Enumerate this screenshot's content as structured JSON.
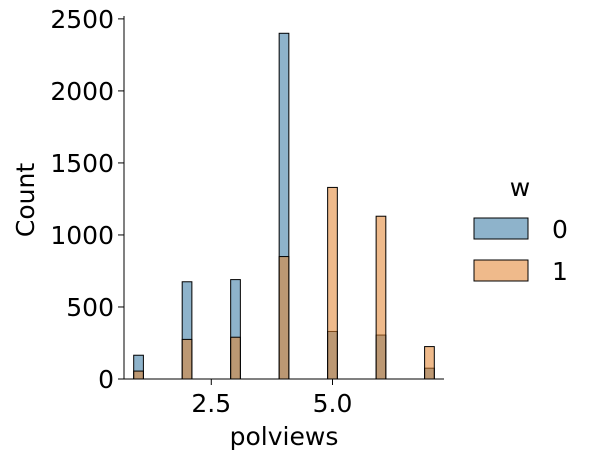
{
  "chart_data": {
    "type": "bar",
    "xlabel": "polviews",
    "ylabel": "Count",
    "xlim": [
      0.7,
      7.3
    ],
    "ylim": [
      0,
      2520
    ],
    "x_ticks": [
      2.5,
      5.0
    ],
    "x_tick_labels": [
      "2.5",
      "5.0"
    ],
    "y_ticks": [
      0,
      500,
      1000,
      1500,
      2000,
      2500
    ],
    "y_tick_labels": [
      "0",
      "500",
      "1000",
      "1500",
      "2000",
      "2500"
    ],
    "bin_width": 0.2,
    "x": [
      1,
      2,
      3,
      4,
      5,
      6,
      7
    ],
    "series": [
      {
        "name": "0",
        "color": "#3274a1",
        "values": [
          165,
          675,
          690,
          2400,
          330,
          305,
          75
        ]
      },
      {
        "name": "1",
        "color": "#e1812c",
        "values": [
          55,
          275,
          290,
          850,
          1330,
          1130,
          225
        ]
      }
    ],
    "legend": {
      "title": "w",
      "placement": "center-right",
      "entries": [
        "0",
        "1"
      ]
    },
    "grid": false
  }
}
